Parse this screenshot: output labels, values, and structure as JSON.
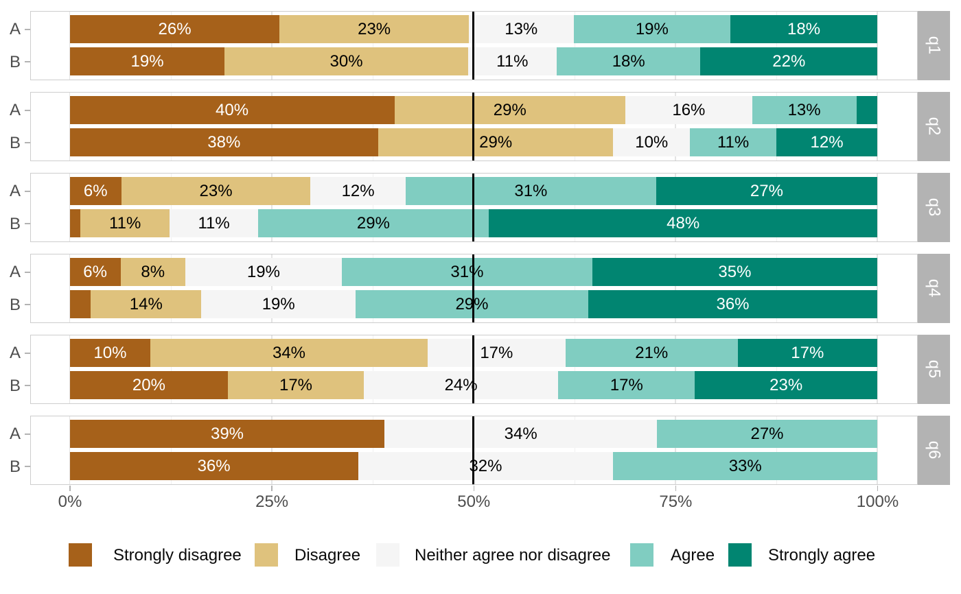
{
  "chart_data": {
    "type": "bar",
    "subtype": "diverging-stacked-likert",
    "title": "",
    "xlabel": "",
    "ylabel": "",
    "xlim": [
      0,
      100
    ],
    "x_ticks": [
      {
        "value": 0,
        "label": "0%"
      },
      {
        "value": 25,
        "label": "25%"
      },
      {
        "value": 50,
        "label": "50%"
      },
      {
        "value": 75,
        "label": "75%"
      },
      {
        "value": 100,
        "label": "100%"
      }
    ],
    "x_minor_ticks": [
      12.5,
      37.5,
      62.5,
      87.5
    ],
    "reference_line_value": 50,
    "grid": "on",
    "legend_position": "bottom",
    "levels": [
      {
        "name": "Strongly disagree",
        "color": "#A6611A",
        "label_color": "#FFFFFF"
      },
      {
        "name": "Disagree",
        "color": "#DFC27D",
        "label_color": "#000000"
      },
      {
        "name": "Neither agree nor disagree",
        "color": "#F5F5F5",
        "label_color": "#000000"
      },
      {
        "name": "Agree",
        "color": "#80CDC1",
        "label_color": "#000000"
      },
      {
        "name": "Strongly agree",
        "color": "#018571",
        "label_color": "#FFFFFF"
      }
    ],
    "row_categories": [
      "A",
      "B"
    ],
    "facets": [
      {
        "strip": "q1",
        "rows": [
          {
            "group": "A",
            "values": [
              26.0,
              23.4,
              13.0,
              19.4,
              18.2
            ],
            "labels": [
              "26%",
              "23%",
              "13%",
              "19%",
              "18%"
            ]
          },
          {
            "group": "B",
            "values": [
              19.2,
              30.1,
              11.0,
              17.8,
              21.9
            ],
            "labels": [
              "19%",
              "30%",
              "11%",
              "18%",
              "22%"
            ]
          }
        ]
      },
      {
        "strip": "q2",
        "rows": [
          {
            "group": "A",
            "values": [
              40.2,
              28.6,
              15.7,
              12.9,
              2.6
            ],
            "labels": [
              "40%",
              "29%",
              "16%",
              "13%",
              null
            ]
          },
          {
            "group": "B",
            "values": [
              38.2,
              29.1,
              9.5,
              10.7,
              12.5
            ],
            "labels": [
              "38%",
              "29%",
              "10%",
              "11%",
              "12%"
            ]
          }
        ]
      },
      {
        "strip": "q3",
        "rows": [
          {
            "group": "A",
            "values": [
              6.4,
              23.4,
              11.8,
              31.0,
              27.4
            ],
            "labels": [
              "6%",
              "23%",
              "12%",
              "31%",
              "27%"
            ]
          },
          {
            "group": "B",
            "values": [
              1.3,
              11.1,
              10.9,
              28.6,
              48.1
            ],
            "labels": [
              null,
              "11%",
              "11%",
              "29%",
              "48%"
            ]
          }
        ]
      },
      {
        "strip": "q4",
        "rows": [
          {
            "group": "A",
            "values": [
              6.3,
              8.0,
              19.4,
              31.0,
              35.3
            ],
            "labels": [
              "6%",
              "8%",
              "19%",
              "31%",
              "35%"
            ]
          },
          {
            "group": "B",
            "values": [
              2.6,
              13.7,
              19.1,
              28.8,
              35.8
            ],
            "labels": [
              null,
              "14%",
              "19%",
              "29%",
              "36%"
            ]
          }
        ]
      },
      {
        "strip": "q5",
        "rows": [
          {
            "group": "A",
            "values": [
              10.0,
              34.3,
              17.1,
              21.3,
              17.3
            ],
            "labels": [
              "10%",
              "34%",
              "17%",
              "21%",
              "17%"
            ]
          },
          {
            "group": "B",
            "values": [
              19.6,
              16.8,
              24.1,
              16.9,
              22.6
            ],
            "labels": [
              "20%",
              "17%",
              "24%",
              "17%",
              "23%"
            ]
          }
        ]
      },
      {
        "strip": "q6",
        "rows": [
          {
            "group": "A",
            "values": [
              39.0,
              0.0,
              33.7,
              27.3,
              0.0
            ],
            "labels": [
              "39%",
              null,
              "34%",
              "27%",
              null
            ]
          },
          {
            "group": "B",
            "values": [
              35.7,
              0.0,
              31.6,
              32.7,
              0.0
            ],
            "labels": [
              "36%",
              null,
              "32%",
              "33%",
              null
            ]
          }
        ]
      }
    ]
  },
  "style": {
    "panel_border_color": "#CDCDCD",
    "strip_background": "#B3B3B3",
    "strip_text_color": "#FFFFFF",
    "axis_text_color": "#4D4D4D",
    "tick_color": "#B3B3B3",
    "major_grid_color": "#E4E4E4",
    "minor_grid_color": "#F0F0F0",
    "reference_line_color": "#000000",
    "background": "#FFFFFF"
  }
}
